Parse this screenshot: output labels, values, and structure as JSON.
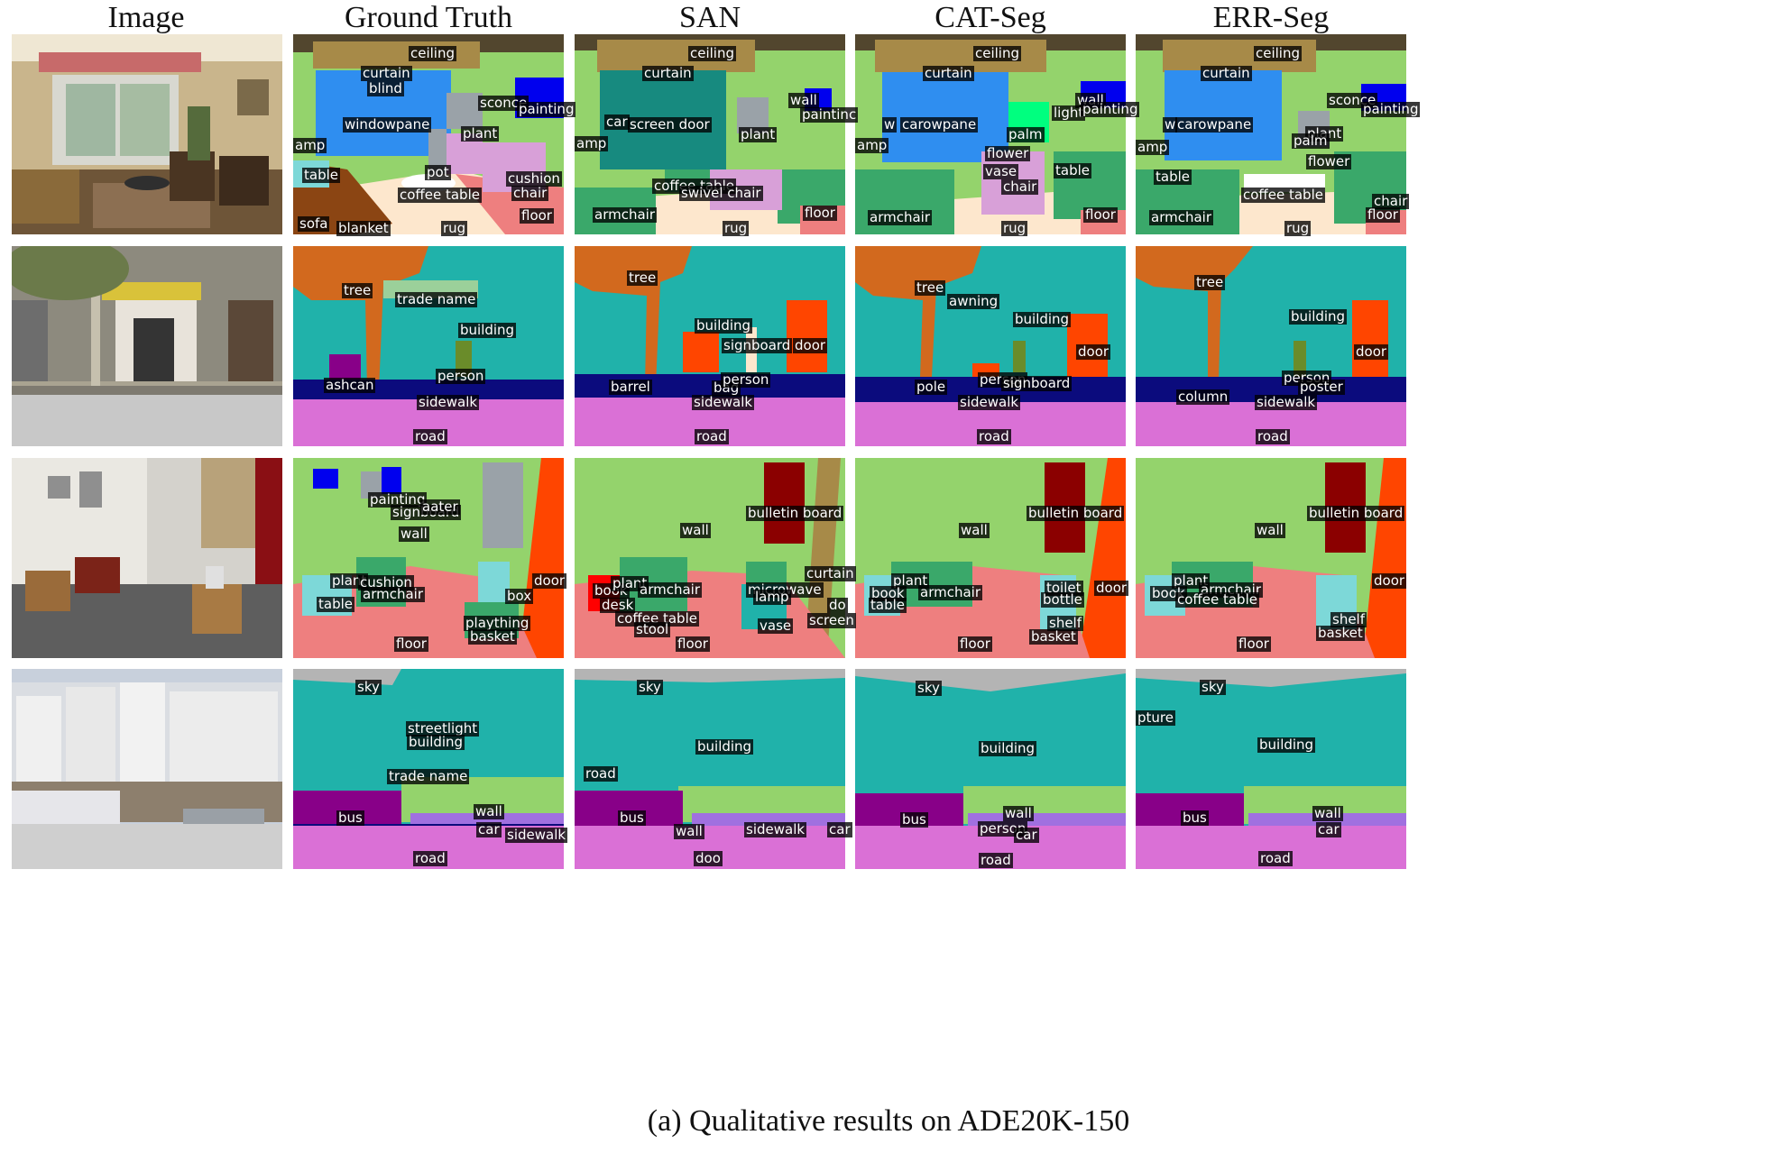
{
  "columns": [
    "Image",
    "Ground Truth",
    "SAN",
    "CAT-Seg",
    "ERR-Seg"
  ],
  "caption": "(a) Qualitative results on ADE20K-150",
  "colors": {
    "wall": "#94d36c",
    "ceiling": "#52462e",
    "curtain": "#a78a48",
    "windowpane": "#2f8ef0",
    "floor": "#ee7f7f",
    "rug": "#fde7cd",
    "armchair": "#3aa86a",
    "plant": "#9aa2a8",
    "building": "#20b2aa",
    "tree": "#d2691e",
    "road": "#da70d6",
    "sidewalk": "#0b0b7d",
    "sky": "#b4b4b4",
    "bus": "#880088",
    "car": "#a070e0",
    "door": "#ff4500",
    "bulletin": "#8b0000",
    "sofa": "#8b4513",
    "table": "#7dd8d8",
    "chair": "#d8a0d8",
    "painting": "#0000ee",
    "person": "#6a8c2a",
    "screen": "#178a7f",
    "palm": "#00ff7f"
  },
  "labels": {
    "r1": {
      "gt": [
        "ceiling",
        "curtain",
        "blind",
        "windowpane",
        "sconce",
        "painting",
        "amp",
        "plant",
        "pot",
        "cushion",
        "chair",
        "table",
        "coffee table",
        "sofa",
        "blanket",
        "rug",
        "floor"
      ],
      "san": [
        "ceiling",
        "curtain",
        "wall",
        "car",
        "screen door",
        "paintinc",
        "amp",
        "plant",
        "coffee table",
        "swivel chair",
        "armchair",
        "rug",
        "floor"
      ],
      "cat": [
        "ceiling",
        "curtain",
        "wall",
        "light",
        "painting",
        "carowpane",
        "w",
        "palm",
        "amp",
        "flower",
        "vase",
        "table",
        "chair",
        "armchair",
        "rug",
        "floor"
      ],
      "err": [
        "ceiling",
        "curtain",
        "sconce",
        "painting",
        "carowpane",
        "w",
        "amp",
        "plant",
        "palm",
        "flower",
        "table",
        "coffee table",
        "chair",
        "armchair",
        "rug",
        "floor"
      ]
    },
    "r2": {
      "gt": [
        "tree",
        "trade name",
        "building",
        "person",
        "ashcan",
        "sidewalk",
        "road"
      ],
      "san": [
        "tree",
        "building",
        "signboard",
        "door",
        "barrel",
        "bag",
        "person",
        "sidewalk",
        "road"
      ],
      "cat": [
        "tree",
        "awning",
        "building",
        "door",
        "person",
        "signboard",
        "pole",
        "sidewalk",
        "road"
      ],
      "err": [
        "tree",
        "building",
        "door",
        "person",
        "poster",
        "column",
        "sidewalk",
        "road"
      ]
    },
    "r3": {
      "gt": [
        "painting",
        "signboard",
        "aater",
        "wall",
        "plant",
        "cushion",
        "armchair",
        "table",
        "box",
        "door",
        "plaything",
        "basket",
        "floor"
      ],
      "san": [
        "bulletin board",
        "wall",
        "curtain",
        "book",
        "plant",
        "armchair",
        "desk",
        "microwave",
        "lamp",
        "do",
        "coffee table",
        "stool",
        "screen",
        "vase",
        "floor"
      ],
      "cat": [
        "bulletin board",
        "wall",
        "plant",
        "book",
        "armchair",
        "table",
        "toilet",
        "bottle",
        "door",
        "shelf",
        "basket",
        "floor"
      ],
      "err": [
        "bulletin board",
        "wall",
        "plant",
        "book",
        "armchair",
        "coffee table",
        "door",
        "shelf",
        "basket",
        "floor"
      ]
    },
    "r4": {
      "gt": [
        "sky",
        "streetlight",
        "building",
        "trade name",
        "bus",
        "wall",
        "car",
        "sidewalk",
        "road"
      ],
      "san": [
        "sky",
        "building",
        "bus",
        "wall",
        "sidewalk",
        "car",
        "doo",
        "road"
      ],
      "cat": [
        "sky",
        "building",
        "bus",
        "wall",
        "person",
        "car",
        "road"
      ],
      "err": [
        "sky",
        "pture",
        "building",
        "bus",
        "wall",
        "car",
        "road"
      ]
    }
  }
}
